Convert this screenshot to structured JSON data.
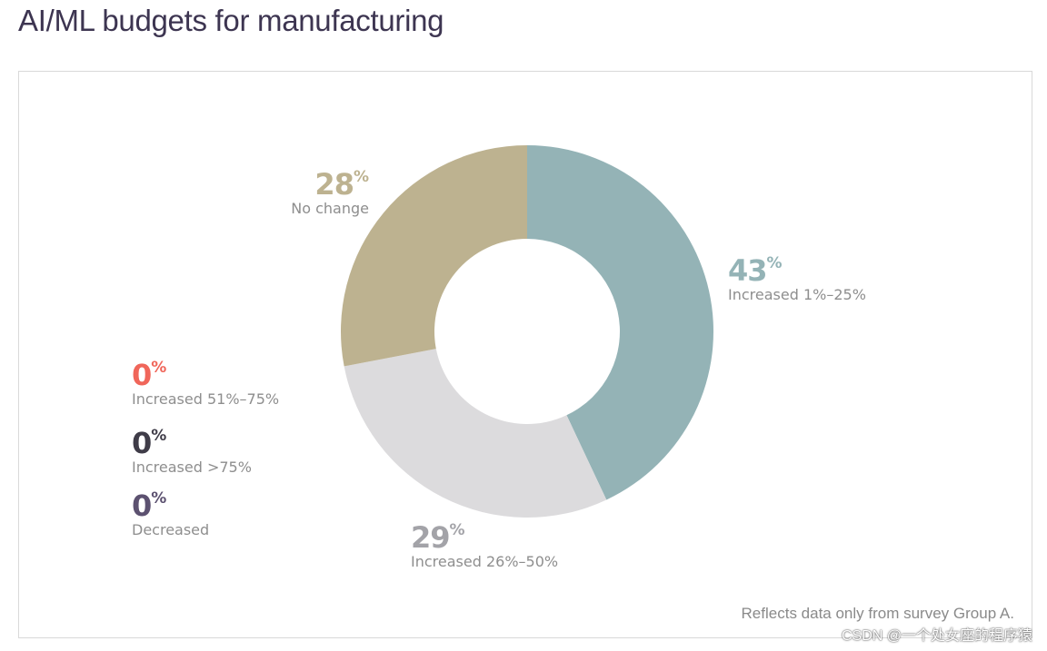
{
  "title": "AI/ML budgets for manufacturing",
  "footnote": "Reflects data only from survey Group A.",
  "watermark": "CSDN @一个处女座的程序猿",
  "percent_sign": "%",
  "chart_data": {
    "type": "pie",
    "variant": "donut",
    "title": "AI/ML budgets for manufacturing",
    "unit": "%",
    "slices": [
      {
        "key": "inc_1_25",
        "label": "Increased 1%–25%",
        "value": 43,
        "display": "43",
        "color": "#94b3b6"
      },
      {
        "key": "inc_26_50",
        "label": "Increased 26%–50%",
        "value": 29,
        "display": "29",
        "color": "#dcdbdd",
        "label_color": "#a3a3a8"
      },
      {
        "key": "no_change",
        "label": "No change",
        "value": 28,
        "display": "28",
        "color": "#bdb290"
      },
      {
        "key": "inc_51_75",
        "label": "Increased 51%–75%",
        "value": 0,
        "display": "0",
        "color": "#f0665a"
      },
      {
        "key": "inc_gt_75",
        "label": "Increased >75%",
        "value": 0,
        "display": "0",
        "color": "#3f3c48"
      },
      {
        "key": "decreased",
        "label": "Decreased",
        "value": 0,
        "display": "0",
        "color": "#5c5170"
      }
    ]
  }
}
